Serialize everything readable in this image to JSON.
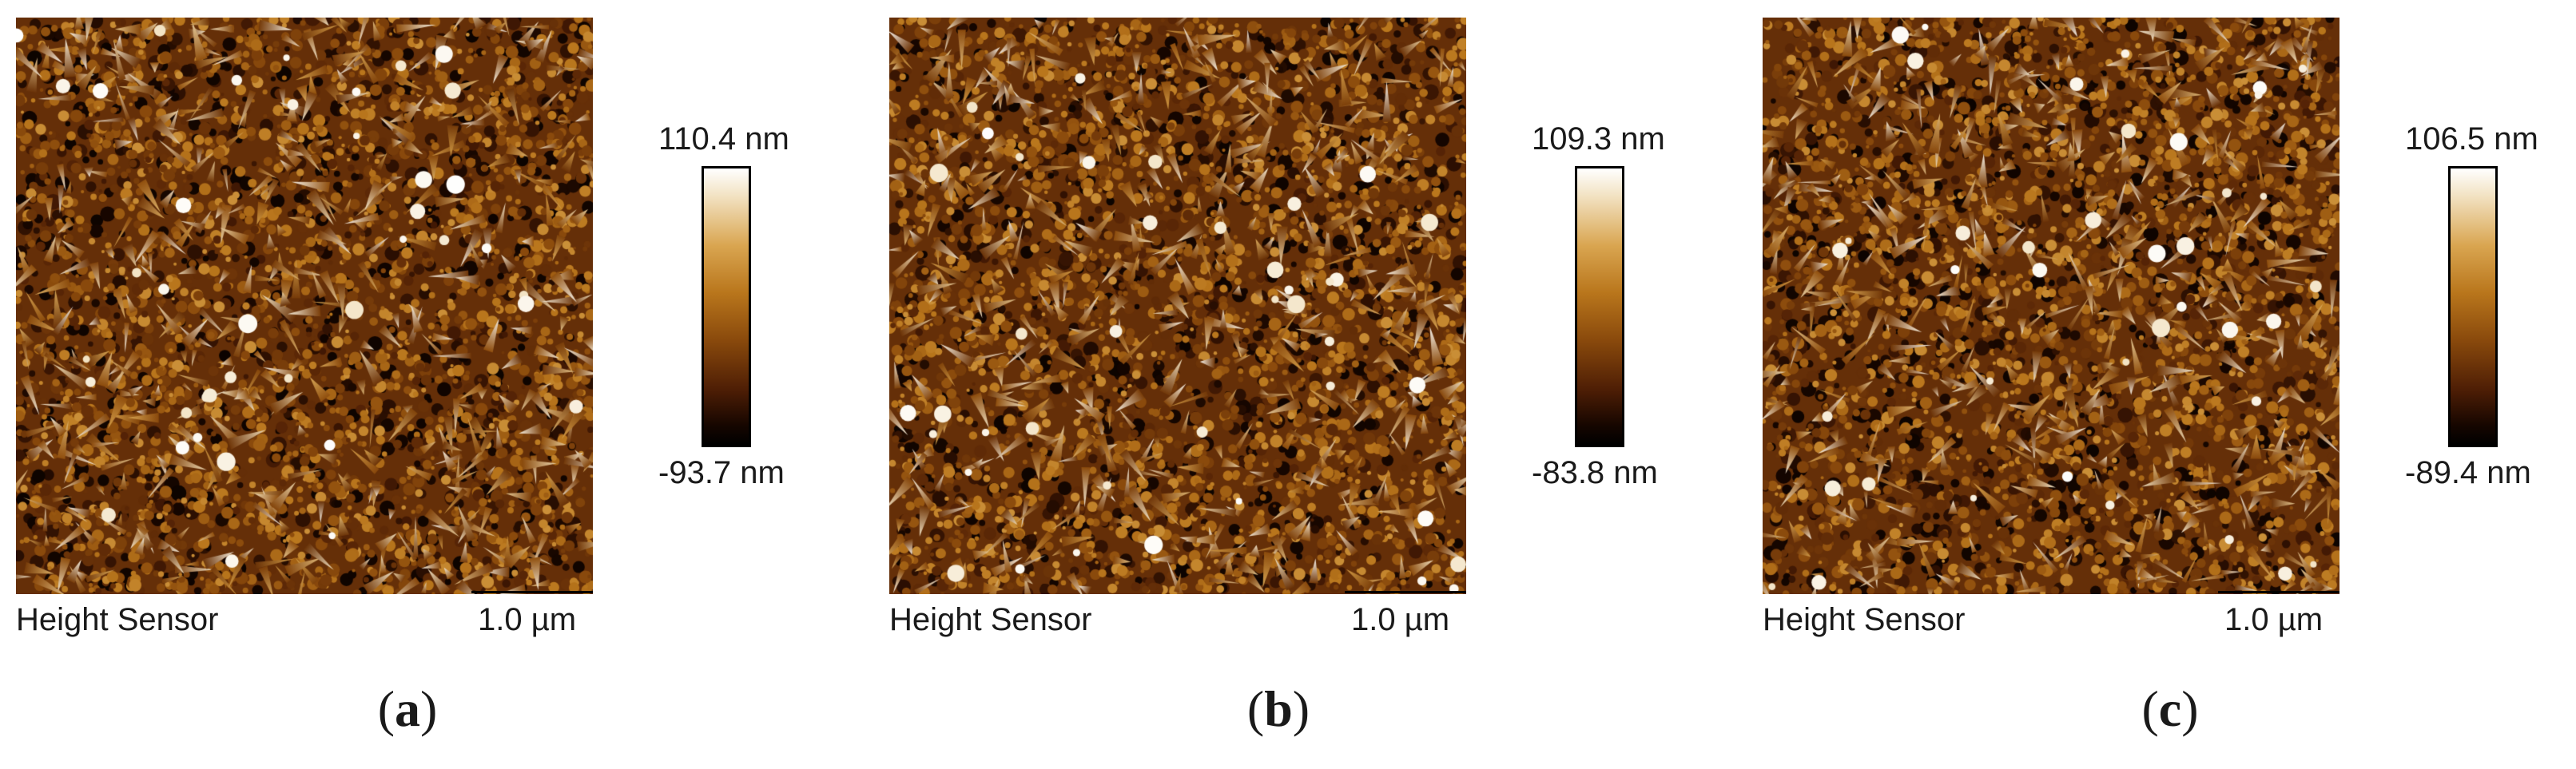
{
  "panels": [
    {
      "label": "a",
      "sensor_label": "Height Sensor",
      "scale_bar": "1.0 µm",
      "colorbar": {
        "max": "110.4 nm",
        "min": "-93.7 nm"
      },
      "seed": 17
    },
    {
      "label": "b",
      "sensor_label": "Height Sensor",
      "scale_bar": "1.0 µm",
      "colorbar": {
        "max": "109.3 nm",
        "min": "-83.8 nm"
      },
      "seed": 53
    },
    {
      "label": "c",
      "sensor_label": "Height Sensor",
      "scale_bar": "1.0 µm",
      "colorbar": {
        "max": "106.5 nm",
        "min": "-89.4 nm"
      },
      "seed": 91
    }
  ],
  "colormap": [
    "#000000",
    "#160600",
    "#4e1e05",
    "#8a4a0c",
    "#b9761c",
    "#d9a550",
    "#f2e2c2",
    "#ffffff"
  ]
}
